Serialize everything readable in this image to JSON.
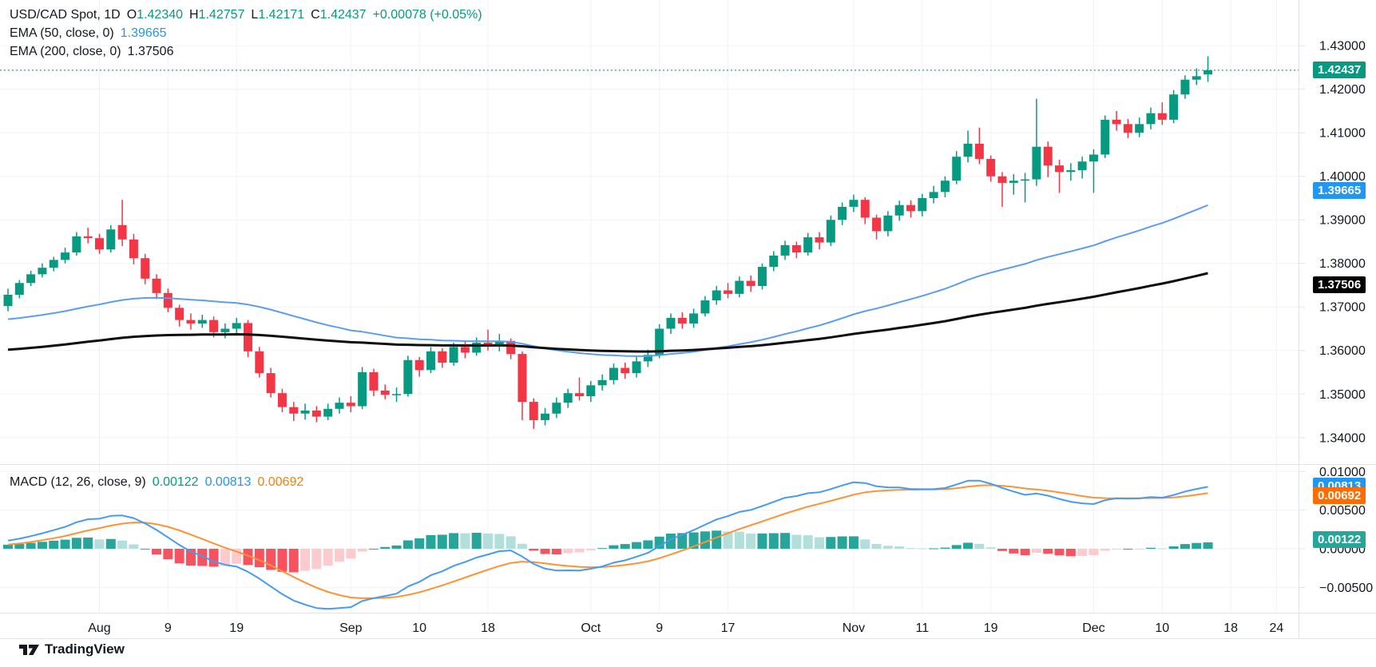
{
  "header": {
    "title": "USD/CAD Spot, 1D",
    "ohlc": {
      "o_label": "O",
      "o": "1.42340",
      "h_label": "H",
      "h": "1.42757",
      "l_label": "L",
      "l": "1.42171",
      "c_label": "C",
      "c": "1.42437",
      "change": "+0.00078 (+0.05%)"
    },
    "ema50": {
      "label": "EMA (50, close, 0)",
      "value": "1.39665"
    },
    "ema200": {
      "label": "EMA (200, close, 0)",
      "value": "1.37506"
    },
    "macd": {
      "label": "MACD (12, 26, close, 9)",
      "hist": "0.00122",
      "macd": "0.00813",
      "signal": "0.00692"
    }
  },
  "logo": {
    "brand": "TradingView"
  },
  "price_axis": {
    "badges": [
      {
        "text": "1.42437",
        "value": 1.42437,
        "bg": "#089981"
      },
      {
        "text": "1.39665",
        "value": 1.39665,
        "bg": "#2196f3"
      },
      {
        "text": "1.37506",
        "value": 1.37506,
        "bg": "#000000"
      }
    ]
  },
  "macd_axis": {
    "badges": [
      {
        "text": "0.00813",
        "value": 0.00813,
        "bg": "#2196f3"
      },
      {
        "text": "0.00692",
        "value": 0.00692,
        "bg": "#ff6d00"
      },
      {
        "text": "0.00122",
        "value": 0.00122,
        "bg": "#26a69a"
      }
    ]
  },
  "chart_data": {
    "type": "candlestick",
    "title": "USD/CAD Spot, 1D",
    "panes": [
      "price",
      "macd"
    ],
    "last_price": 1.42437,
    "price_view": {
      "min": 1.3339,
      "max": 1.4405
    },
    "macd_view": {
      "min": -0.00828,
      "max": 0.01086
    },
    "price_ticks": [
      {
        "label": "1.43000",
        "value": 1.43
      },
      {
        "label": "1.42000",
        "value": 1.42
      },
      {
        "label": "1.41000",
        "value": 1.41
      },
      {
        "label": "1.40000",
        "value": 1.4
      },
      {
        "label": "1.39000",
        "value": 1.39
      },
      {
        "label": "1.38000",
        "value": 1.38
      },
      {
        "label": "1.37000",
        "value": 1.37
      },
      {
        "label": "1.36000",
        "value": 1.36
      },
      {
        "label": "1.35000",
        "value": 1.35
      },
      {
        "label": "1.34000",
        "value": 1.34
      }
    ],
    "macd_ticks": [
      {
        "label": "0.01000",
        "value": 0.01
      },
      {
        "label": "0.00500",
        "value": 0.005
      },
      {
        "label": "0.00000",
        "value": 0
      },
      {
        "label": "−0.00500",
        "value": -0.005
      }
    ],
    "time_ticks": [
      {
        "label": "Aug",
        "i": 8
      },
      {
        "label": "9",
        "i": 14
      },
      {
        "label": "19",
        "i": 20
      },
      {
        "label": "Sep",
        "i": 30
      },
      {
        "label": "10",
        "i": 36
      },
      {
        "label": "18",
        "i": 42
      },
      {
        "label": "Oct",
        "i": 51
      },
      {
        "label": "9",
        "i": 57
      },
      {
        "label": "17",
        "i": 63
      },
      {
        "label": "Nov",
        "i": 74
      },
      {
        "label": "11",
        "i": 80
      },
      {
        "label": "19",
        "i": 86
      },
      {
        "label": "Dec",
        "i": 95
      },
      {
        "label": "10",
        "i": 101
      },
      {
        "label": "18",
        "i": 107
      },
      {
        "label": "24",
        "i": 111
      }
    ],
    "indicators": {
      "ema_fast_period": 50,
      "ema_slow_period": 200,
      "macd_params": [
        12,
        26,
        9
      ],
      "ema50_last": 1.39665,
      "ema200_last": 1.37506,
      "macd_last": 0.00813,
      "signal_last": 0.00692,
      "hist_last": 0.00122
    },
    "colors": {
      "up": "#089981",
      "down": "#f23645",
      "ema50": "#5b9cf5",
      "ema200": "#0d0d0d",
      "macd": "#459af5",
      "signal": "#ff9234",
      "hist_up": "#26a69a",
      "hist_up_weak": "#b2dfdb",
      "hist_down": "#f7525f",
      "hist_down_weak": "#fccbcd",
      "grid": "#f0f3fa",
      "border": "#e0e3eb",
      "axis_text": "#131722",
      "last_price_line": "#089981"
    },
    "candles": [
      [
        1.3702,
        1.3742,
        1.369,
        1.3728
      ],
      [
        1.3728,
        1.3762,
        1.372,
        1.3755
      ],
      [
        1.3755,
        1.3783,
        1.3748,
        1.3775
      ],
      [
        1.3775,
        1.38,
        1.3768,
        1.379
      ],
      [
        1.379,
        1.3815,
        1.3782,
        1.3808
      ],
      [
        1.3808,
        1.3836,
        1.38,
        1.3825
      ],
      [
        1.3825,
        1.3872,
        1.3818,
        1.3862
      ],
      [
        1.3862,
        1.3882,
        1.3846,
        1.3858
      ],
      [
        1.3858,
        1.3868,
        1.3822,
        1.3832
      ],
      [
        1.3832,
        1.3888,
        1.3825,
        1.3878
      ],
      [
        1.3888,
        1.3946,
        1.384,
        1.3855
      ],
      [
        1.3855,
        1.3868,
        1.3798,
        1.3812
      ],
      [
        1.3812,
        1.3822,
        1.3752,
        1.3765
      ],
      [
        1.3765,
        1.3775,
        1.3718,
        1.3732
      ],
      [
        1.3732,
        1.3742,
        1.3688,
        1.3698
      ],
      [
        1.3698,
        1.3705,
        1.3655,
        1.367
      ],
      [
        1.367,
        1.3685,
        1.3648,
        1.3662
      ],
      [
        1.3662,
        1.3682,
        1.3652,
        1.367
      ],
      [
        1.367,
        1.3678,
        1.363,
        1.3642
      ],
      [
        1.3642,
        1.3662,
        1.3628,
        1.365
      ],
      [
        1.365,
        1.3675,
        1.3638,
        1.3663
      ],
      [
        1.3663,
        1.367,
        1.3585,
        1.3598
      ],
      [
        1.3598,
        1.3608,
        1.3538,
        1.3548
      ],
      [
        1.3548,
        1.356,
        1.3492,
        1.3502
      ],
      [
        1.3502,
        1.3512,
        1.3458,
        1.347
      ],
      [
        1.347,
        1.3482,
        1.3438,
        1.3455
      ],
      [
        1.3455,
        1.3478,
        1.3441,
        1.3462
      ],
      [
        1.3462,
        1.3472,
        1.3435,
        1.3448
      ],
      [
        1.3448,
        1.3478,
        1.344,
        1.3466
      ],
      [
        1.3466,
        1.3492,
        1.3455,
        1.348
      ],
      [
        1.348,
        1.3495,
        1.3458,
        1.3472
      ],
      [
        1.3472,
        1.3562,
        1.3465,
        1.355
      ],
      [
        1.355,
        1.3558,
        1.3495,
        1.3508
      ],
      [
        1.3508,
        1.3522,
        1.3488,
        1.3498
      ],
      [
        1.3498,
        1.3515,
        1.3482,
        1.35
      ],
      [
        1.35,
        1.3588,
        1.3494,
        1.3578
      ],
      [
        1.3578,
        1.3585,
        1.354,
        1.3555
      ],
      [
        1.3555,
        1.3608,
        1.3548,
        1.3598
      ],
      [
        1.3598,
        1.3605,
        1.356,
        1.3572
      ],
      [
        1.3572,
        1.3618,
        1.3565,
        1.3608
      ],
      [
        1.3608,
        1.3622,
        1.3582,
        1.3595
      ],
      [
        1.3595,
        1.363,
        1.3588,
        1.3618
      ],
      [
        1.3618,
        1.3648,
        1.36,
        1.361
      ],
      [
        1.361,
        1.3638,
        1.3598,
        1.3622
      ],
      [
        1.3622,
        1.3628,
        1.358,
        1.3592
      ],
      [
        1.3592,
        1.3598,
        1.344,
        1.3482
      ],
      [
        1.3482,
        1.349,
        1.342,
        1.344
      ],
      [
        1.344,
        1.3468,
        1.3428,
        1.3455
      ],
      [
        1.3455,
        1.3492,
        1.3445,
        1.348
      ],
      [
        1.348,
        1.3512,
        1.3468,
        1.3502
      ],
      [
        1.3502,
        1.3538,
        1.3485,
        1.3495
      ],
      [
        1.3495,
        1.353,
        1.3482,
        1.352
      ],
      [
        1.352,
        1.3545,
        1.3508,
        1.3532
      ],
      [
        1.3532,
        1.357,
        1.3522,
        1.356
      ],
      [
        1.356,
        1.3572,
        1.3535,
        1.3548
      ],
      [
        1.3548,
        1.3585,
        1.3538,
        1.3575
      ],
      [
        1.3575,
        1.3602,
        1.3562,
        1.359
      ],
      [
        1.359,
        1.366,
        1.3582,
        1.365
      ],
      [
        1.365,
        1.3685,
        1.3638,
        1.3675
      ],
      [
        1.3675,
        1.3688,
        1.365,
        1.3662
      ],
      [
        1.3662,
        1.3696,
        1.3652,
        1.3685
      ],
      [
        1.3685,
        1.3725,
        1.3678,
        1.3715
      ],
      [
        1.3715,
        1.3748,
        1.3705,
        1.3738
      ],
      [
        1.3738,
        1.3755,
        1.372,
        1.373
      ],
      [
        1.373,
        1.377,
        1.3722,
        1.376
      ],
      [
        1.376,
        1.3772,
        1.3735,
        1.3748
      ],
      [
        1.3748,
        1.38,
        1.374,
        1.3792
      ],
      [
        1.3792,
        1.3828,
        1.3782,
        1.3818
      ],
      [
        1.3818,
        1.3852,
        1.3808,
        1.3842
      ],
      [
        1.3842,
        1.385,
        1.3812,
        1.3825
      ],
      [
        1.3825,
        1.387,
        1.3818,
        1.386
      ],
      [
        1.386,
        1.3872,
        1.3832,
        1.3848
      ],
      [
        1.3848,
        1.391,
        1.384,
        1.39
      ],
      [
        1.39,
        1.394,
        1.3888,
        1.393
      ],
      [
        1.393,
        1.3958,
        1.3918,
        1.3946
      ],
      [
        1.3946,
        1.3952,
        1.389,
        1.3905
      ],
      [
        1.3905,
        1.3912,
        1.3855,
        1.3874
      ],
      [
        1.3874,
        1.392,
        1.3862,
        1.391
      ],
      [
        1.391,
        1.3944,
        1.3898,
        1.3934
      ],
      [
        1.3934,
        1.3945,
        1.3905,
        1.392
      ],
      [
        1.392,
        1.396,
        1.3908,
        1.395
      ],
      [
        1.395,
        1.3978,
        1.3938,
        1.3964
      ],
      [
        1.3964,
        1.4,
        1.3952,
        1.399
      ],
      [
        1.399,
        1.4058,
        1.3982,
        1.4045
      ],
      [
        1.4045,
        1.4105,
        1.4032,
        1.4075
      ],
      [
        1.4075,
        1.4112,
        1.4028,
        1.404
      ],
      [
        1.404,
        1.4048,
        1.3988,
        1.4
      ],
      [
        1.4,
        1.401,
        1.393,
        1.3985
      ],
      [
        1.3985,
        1.4005,
        1.3958,
        1.399
      ],
      [
        1.399,
        1.4008,
        1.394,
        1.3993
      ],
      [
        1.3993,
        1.4178,
        1.3978,
        1.4068
      ],
      [
        1.4068,
        1.408,
        1.3998,
        1.4025
      ],
      [
        1.4025,
        1.4038,
        1.3962,
        1.401
      ],
      [
        1.401,
        1.403,
        1.399,
        1.4014
      ],
      [
        1.4014,
        1.4045,
        1.3995,
        1.4034
      ],
      [
        1.4034,
        1.4062,
        1.3962,
        1.405
      ],
      [
        1.405,
        1.414,
        1.4042,
        1.413
      ],
      [
        1.413,
        1.415,
        1.4105,
        1.412
      ],
      [
        1.412,
        1.4132,
        1.4088,
        1.41
      ],
      [
        1.41,
        1.4135,
        1.409,
        1.412
      ],
      [
        1.412,
        1.4158,
        1.4108,
        1.4145
      ],
      [
        1.4145,
        1.417,
        1.4118,
        1.413
      ],
      [
        1.413,
        1.4198,
        1.4122,
        1.4188
      ],
      [
        1.4188,
        1.4232,
        1.4178,
        1.4222
      ],
      [
        1.4222,
        1.4248,
        1.421,
        1.423
      ],
      [
        1.4234,
        1.42757,
        1.42171,
        1.42437
      ]
    ]
  }
}
